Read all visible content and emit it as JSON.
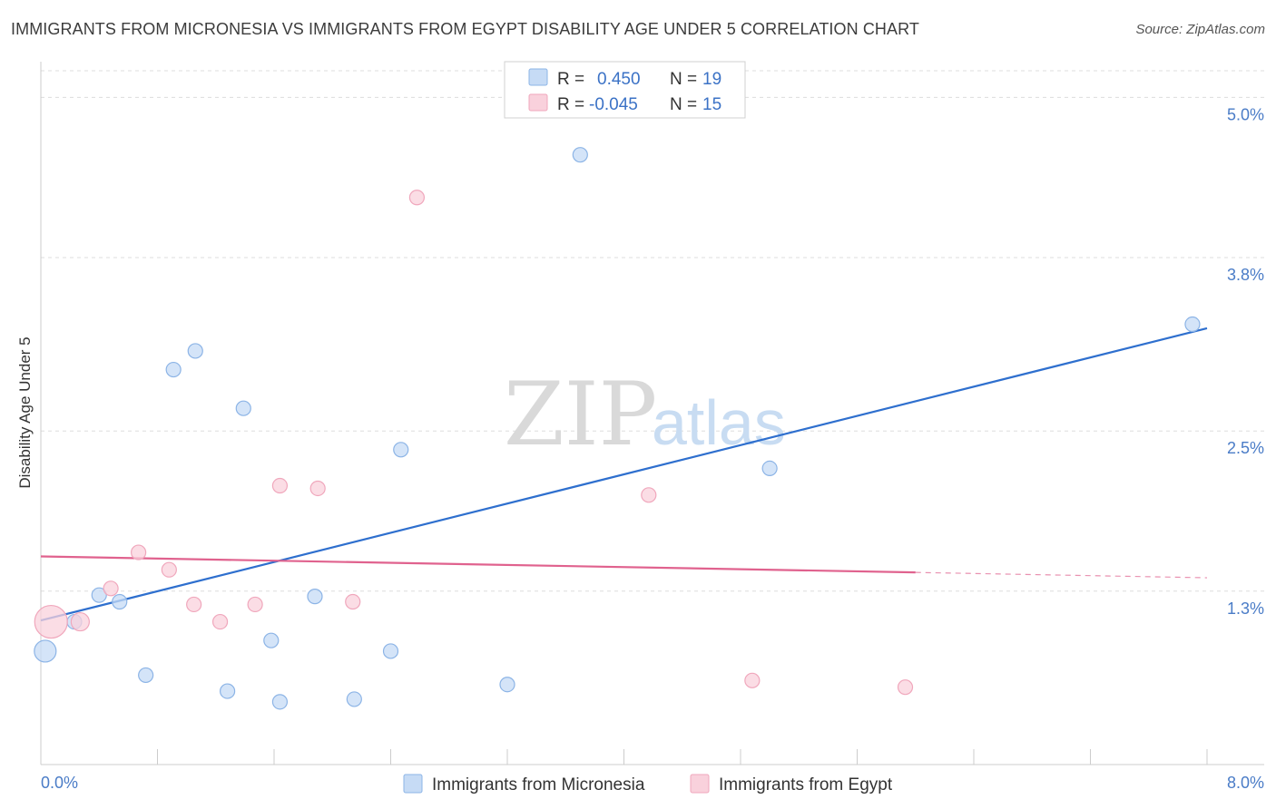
{
  "header": {
    "title": "IMMIGRANTS FROM MICRONESIA VS IMMIGRANTS FROM EGYPT DISABILITY AGE UNDER 5 CORRELATION CHART",
    "source": "Source: ZipAtlas.com"
  },
  "watermark": {
    "zip": "ZIP",
    "atlas": "atlas"
  },
  "colors": {
    "micronesia_fill": "#c6dbf5",
    "micronesia_stroke": "#8cb4e6",
    "micronesia_line": "#2e6fce",
    "egypt_fill": "#f9d1dc",
    "egypt_stroke": "#f0a7bc",
    "egypt_line": "#e0628e",
    "grid": "#dddddd",
    "tick_text": "#4a7cc7"
  },
  "legend": {
    "rows": [
      {
        "r_label": "R =",
        "r_value": "0.450",
        "n_label": "N =",
        "n_value": "19"
      },
      {
        "r_label": "R =",
        "r_value": "-0.045",
        "n_label": "N =",
        "n_value": "15"
      }
    ]
  },
  "chart_data": {
    "type": "scatter",
    "title": "IMMIGRANTS FROM MICRONESIA VS IMMIGRANTS FROM EGYPT DISABILITY AGE UNDER 5 CORRELATION CHART",
    "xlabel": "",
    "ylabel": "Disability Age Under 5",
    "xlim": [
      0,
      8
    ],
    "ylim": [
      0,
      5.2
    ],
    "x_tick_labels": [
      "0.0%",
      "8.0%"
    ],
    "y_ticks": [
      1.3,
      2.5,
      3.8,
      5.0
    ],
    "y_tick_labels": [
      "1.3%",
      "2.5%",
      "3.8%",
      "5.0%"
    ],
    "grid": true,
    "legend_position": "top-center",
    "series": [
      {
        "name": "Immigrants from Micronesia",
        "R": 0.45,
        "N": 19,
        "trend": {
          "x0": 0.0,
          "y0": 1.08,
          "x1": 8.0,
          "y1": 3.27,
          "dashed_from": null
        },
        "points": [
          {
            "x": 0.03,
            "y": 0.85,
            "r": 12
          },
          {
            "x": 0.23,
            "y": 1.07,
            "r": 8
          },
          {
            "x": 0.4,
            "y": 1.27,
            "r": 8
          },
          {
            "x": 0.54,
            "y": 1.22,
            "r": 8
          },
          {
            "x": 0.72,
            "y": 0.67,
            "r": 8
          },
          {
            "x": 0.91,
            "y": 2.96,
            "r": 8
          },
          {
            "x": 1.06,
            "y": 3.1,
            "r": 8
          },
          {
            "x": 1.28,
            "y": 0.55,
            "r": 8
          },
          {
            "x": 1.39,
            "y": 2.67,
            "r": 8
          },
          {
            "x": 1.58,
            "y": 0.93,
            "r": 8
          },
          {
            "x": 1.64,
            "y": 0.47,
            "r": 8
          },
          {
            "x": 1.88,
            "y": 1.26,
            "r": 8
          },
          {
            "x": 2.15,
            "y": 0.49,
            "r": 8
          },
          {
            "x": 2.4,
            "y": 0.85,
            "r": 8
          },
          {
            "x": 2.47,
            "y": 2.36,
            "r": 8
          },
          {
            "x": 3.2,
            "y": 0.6,
            "r": 8
          },
          {
            "x": 3.7,
            "y": 4.57,
            "r": 8
          },
          {
            "x": 5.0,
            "y": 2.22,
            "r": 8
          },
          {
            "x": 7.9,
            "y": 3.3,
            "r": 8
          }
        ]
      },
      {
        "name": "Immigrants from Egypt",
        "R": -0.045,
        "N": 15,
        "trend": {
          "x0": 0.0,
          "y0": 1.56,
          "x1": 8.0,
          "y1": 1.4,
          "dashed_from": 6.0
        },
        "points": [
          {
            "x": 0.07,
            "y": 1.07,
            "r": 18
          },
          {
            "x": 0.27,
            "y": 1.07,
            "r": 10
          },
          {
            "x": 0.48,
            "y": 1.32,
            "r": 8
          },
          {
            "x": 0.67,
            "y": 1.59,
            "r": 8
          },
          {
            "x": 0.88,
            "y": 1.46,
            "r": 8
          },
          {
            "x": 1.05,
            "y": 1.2,
            "r": 8
          },
          {
            "x": 1.23,
            "y": 1.07,
            "r": 8
          },
          {
            "x": 1.47,
            "y": 1.2,
            "r": 8
          },
          {
            "x": 1.64,
            "y": 2.09,
            "r": 8
          },
          {
            "x": 1.9,
            "y": 2.07,
            "r": 8
          },
          {
            "x": 2.14,
            "y": 1.22,
            "r": 8
          },
          {
            "x": 2.58,
            "y": 4.25,
            "r": 8
          },
          {
            "x": 4.17,
            "y": 2.02,
            "r": 8
          },
          {
            "x": 4.88,
            "y": 0.63,
            "r": 8
          },
          {
            "x": 5.93,
            "y": 0.58,
            "r": 8
          }
        ]
      }
    ]
  }
}
